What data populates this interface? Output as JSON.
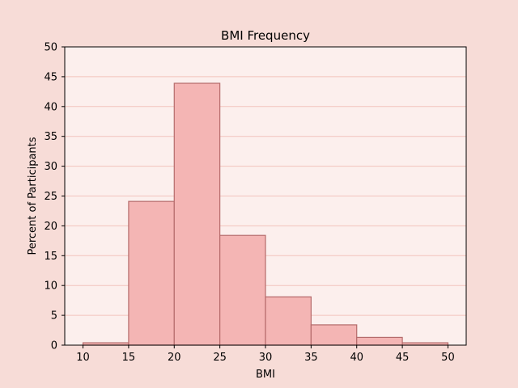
{
  "chart_data": {
    "type": "bar",
    "title": "BMI Frequency",
    "xlabel": "BMI",
    "ylabel": "Percent of Participants",
    "bins": [
      {
        "start": 10,
        "end": 15,
        "value": 0.4
      },
      {
        "start": 15,
        "end": 20,
        "value": 24.1
      },
      {
        "start": 20,
        "end": 25,
        "value": 43.9
      },
      {
        "start": 25,
        "end": 30,
        "value": 18.4
      },
      {
        "start": 30,
        "end": 35,
        "value": 8.1
      },
      {
        "start": 35,
        "end": 40,
        "value": 3.4
      },
      {
        "start": 40,
        "end": 45,
        "value": 1.3
      },
      {
        "start": 45,
        "end": 50,
        "value": 0.4
      }
    ],
    "xlim": [
      8,
      52
    ],
    "ylim": [
      0,
      50
    ],
    "xticks": [
      10,
      15,
      20,
      25,
      30,
      35,
      40,
      45,
      50
    ],
    "yticks": [
      0,
      5,
      10,
      15,
      20,
      25,
      30,
      35,
      40,
      45,
      50
    ],
    "grid": "horizontal",
    "legend": "none",
    "colors": {
      "figure_background": "#f7dcd7",
      "plot_background": "#fcefed",
      "bar_fill": "#f4b5b4",
      "bar_edge": "#b56b6b",
      "grid": "#f2c3bd"
    }
  }
}
